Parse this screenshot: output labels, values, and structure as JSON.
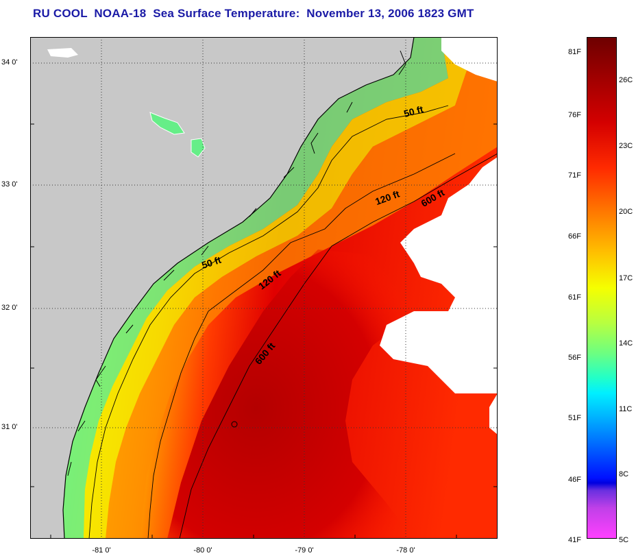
{
  "title": "RU COOL  NOAA-18  Sea Surface Temperature:  November 13, 2006 1823 GMT",
  "map": {
    "lat_ticks": [
      {
        "label": "34 0'",
        "lat": 34.0
      },
      {
        "label": "33 0'",
        "lat": 33.0
      },
      {
        "label": "32 0'",
        "lat": 32.0
      },
      {
        "label": "31 0'",
        "lat": 31.0
      }
    ],
    "lon_ticks": [
      {
        "label": "-81 0'",
        "lon": -81.0
      },
      {
        "label": "-80 0'",
        "lon": -80.0
      },
      {
        "label": "-79 0'",
        "lon": -79.0
      },
      {
        "label": "-78 0'",
        "lon": -78.0
      }
    ],
    "contour_labels": [
      {
        "text": "50 ft",
        "id": "north"
      },
      {
        "text": "50 ft",
        "id": "south"
      },
      {
        "text": "120 ft",
        "id": "north"
      },
      {
        "text": "120 ft",
        "id": "south"
      },
      {
        "text": "600 ft",
        "id": "north"
      },
      {
        "text": "600 ft",
        "id": "south"
      }
    ],
    "colors": {
      "land": "#c8c8c8",
      "cloud": "#ffffff",
      "coast": "#000000"
    }
  },
  "colorbar": {
    "fahrenheit": [
      "81F",
      "76F",
      "71F",
      "66F",
      "61F",
      "56F",
      "51F",
      "46F",
      "41F"
    ],
    "celsius": [
      "26C",
      "23C",
      "20C",
      "17C",
      "14C",
      "11C",
      "8C",
      "5C"
    ]
  }
}
